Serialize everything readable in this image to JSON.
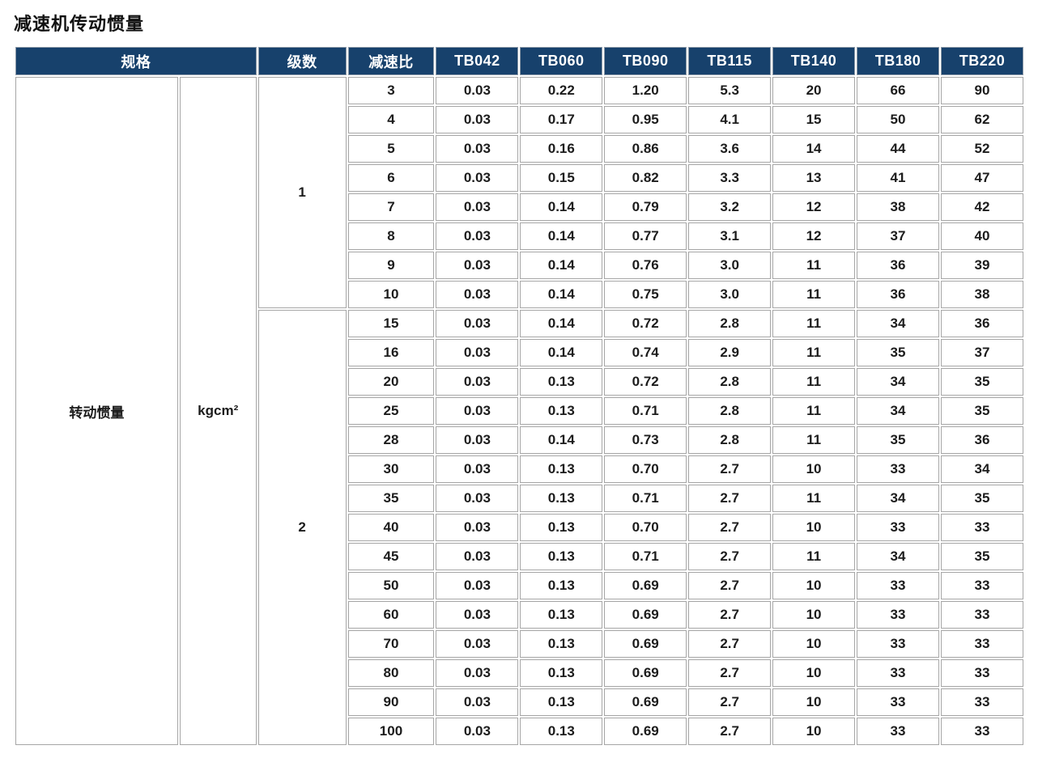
{
  "page": {
    "title": "减速机传动惯量"
  },
  "colors": {
    "header_bg": "#17416C",
    "highlight": "#A9C6E6",
    "row_alt": "#EDEDED"
  },
  "table": {
    "header": {
      "spec": "规格",
      "stages": "级数",
      "ratio": "减速比",
      "models": [
        "TB042",
        "TB060",
        "TB090",
        "TB115",
        "TB140",
        "TB180",
        "TB220"
      ]
    },
    "spec_label": "转动惯量",
    "unit": "kgcm²",
    "groups": [
      {
        "stage": "1",
        "rows": [
          {
            "ratio": "3",
            "highlight": false,
            "values": [
              "0.03",
              "0.22",
              "1.20",
              "5.3",
              "20",
              "66",
              "90"
            ]
          },
          {
            "ratio": "4",
            "highlight": false,
            "values": [
              "0.03",
              "0.17",
              "0.95",
              "4.1",
              "15",
              "50",
              "62"
            ]
          },
          {
            "ratio": "5",
            "highlight": false,
            "values": [
              "0.03",
              "0.16",
              "0.86",
              "3.6",
              "14",
              "44",
              "52"
            ]
          },
          {
            "ratio": "6",
            "highlight": true,
            "values": [
              "0.03",
              "0.15",
              "0.82",
              "3.3",
              "13",
              "41",
              "47"
            ]
          },
          {
            "ratio": "7",
            "highlight": false,
            "values": [
              "0.03",
              "0.14",
              "0.79",
              "3.2",
              "12",
              "38",
              "42"
            ]
          },
          {
            "ratio": "8",
            "highlight": false,
            "values": [
              "0.03",
              "0.14",
              "0.77",
              "3.1",
              "12",
              "37",
              "40"
            ]
          },
          {
            "ratio": "9",
            "highlight": true,
            "values": [
              "0.03",
              "0.14",
              "0.76",
              "3.0",
              "11",
              "36",
              "39"
            ]
          },
          {
            "ratio": "10",
            "highlight": false,
            "values": [
              "0.03",
              "0.14",
              "0.75",
              "3.0",
              "11",
              "36",
              "38"
            ]
          }
        ]
      },
      {
        "stage": "2",
        "rows": [
          {
            "ratio": "15",
            "highlight": false,
            "values": [
              "0.03",
              "0.14",
              "0.72",
              "2.8",
              "11",
              "34",
              "36"
            ]
          },
          {
            "ratio": "16",
            "highlight": true,
            "values": [
              "0.03",
              "0.14",
              "0.74",
              "2.9",
              "11",
              "35",
              "37"
            ]
          },
          {
            "ratio": "20",
            "highlight": false,
            "values": [
              "0.03",
              "0.13",
              "0.72",
              "2.8",
              "11",
              "34",
              "35"
            ]
          },
          {
            "ratio": "25",
            "highlight": false,
            "values": [
              "0.03",
              "0.13",
              "0.71",
              "2.8",
              "11",
              "34",
              "35"
            ]
          },
          {
            "ratio": "28",
            "highlight": true,
            "values": [
              "0.03",
              "0.14",
              "0.73",
              "2.8",
              "11",
              "35",
              "36"
            ]
          },
          {
            "ratio": "30",
            "highlight": false,
            "values": [
              "0.03",
              "0.13",
              "0.70",
              "2.7",
              "10",
              "33",
              "34"
            ]
          },
          {
            "ratio": "35",
            "highlight": false,
            "values": [
              "0.03",
              "0.13",
              "0.71",
              "2.7",
              "11",
              "34",
              "35"
            ]
          },
          {
            "ratio": "40",
            "highlight": false,
            "values": [
              "0.03",
              "0.13",
              "0.70",
              "2.7",
              "10",
              "33",
              "33"
            ]
          },
          {
            "ratio": "45",
            "highlight": true,
            "values": [
              "0.03",
              "0.13",
              "0.71",
              "2.7",
              "11",
              "34",
              "35"
            ]
          },
          {
            "ratio": "50",
            "highlight": false,
            "values": [
              "0.03",
              "0.13",
              "0.69",
              "2.7",
              "10",
              "33",
              "33"
            ]
          },
          {
            "ratio": "60",
            "highlight": true,
            "values": [
              "0.03",
              "0.13",
              "0.69",
              "2.7",
              "10",
              "33",
              "33"
            ]
          },
          {
            "ratio": "70",
            "highlight": false,
            "values": [
              "0.03",
              "0.13",
              "0.69",
              "2.7",
              "10",
              "33",
              "33"
            ]
          },
          {
            "ratio": "80",
            "highlight": false,
            "values": [
              "0.03",
              "0.13",
              "0.69",
              "2.7",
              "10",
              "33",
              "33"
            ]
          },
          {
            "ratio": "90",
            "highlight": true,
            "values": [
              "0.03",
              "0.13",
              "0.69",
              "2.7",
              "10",
              "33",
              "33"
            ]
          },
          {
            "ratio": "100",
            "highlight": false,
            "values": [
              "0.03",
              "0.13",
              "0.69",
              "2.7",
              "10",
              "33",
              "33"
            ]
          }
        ]
      }
    ]
  }
}
